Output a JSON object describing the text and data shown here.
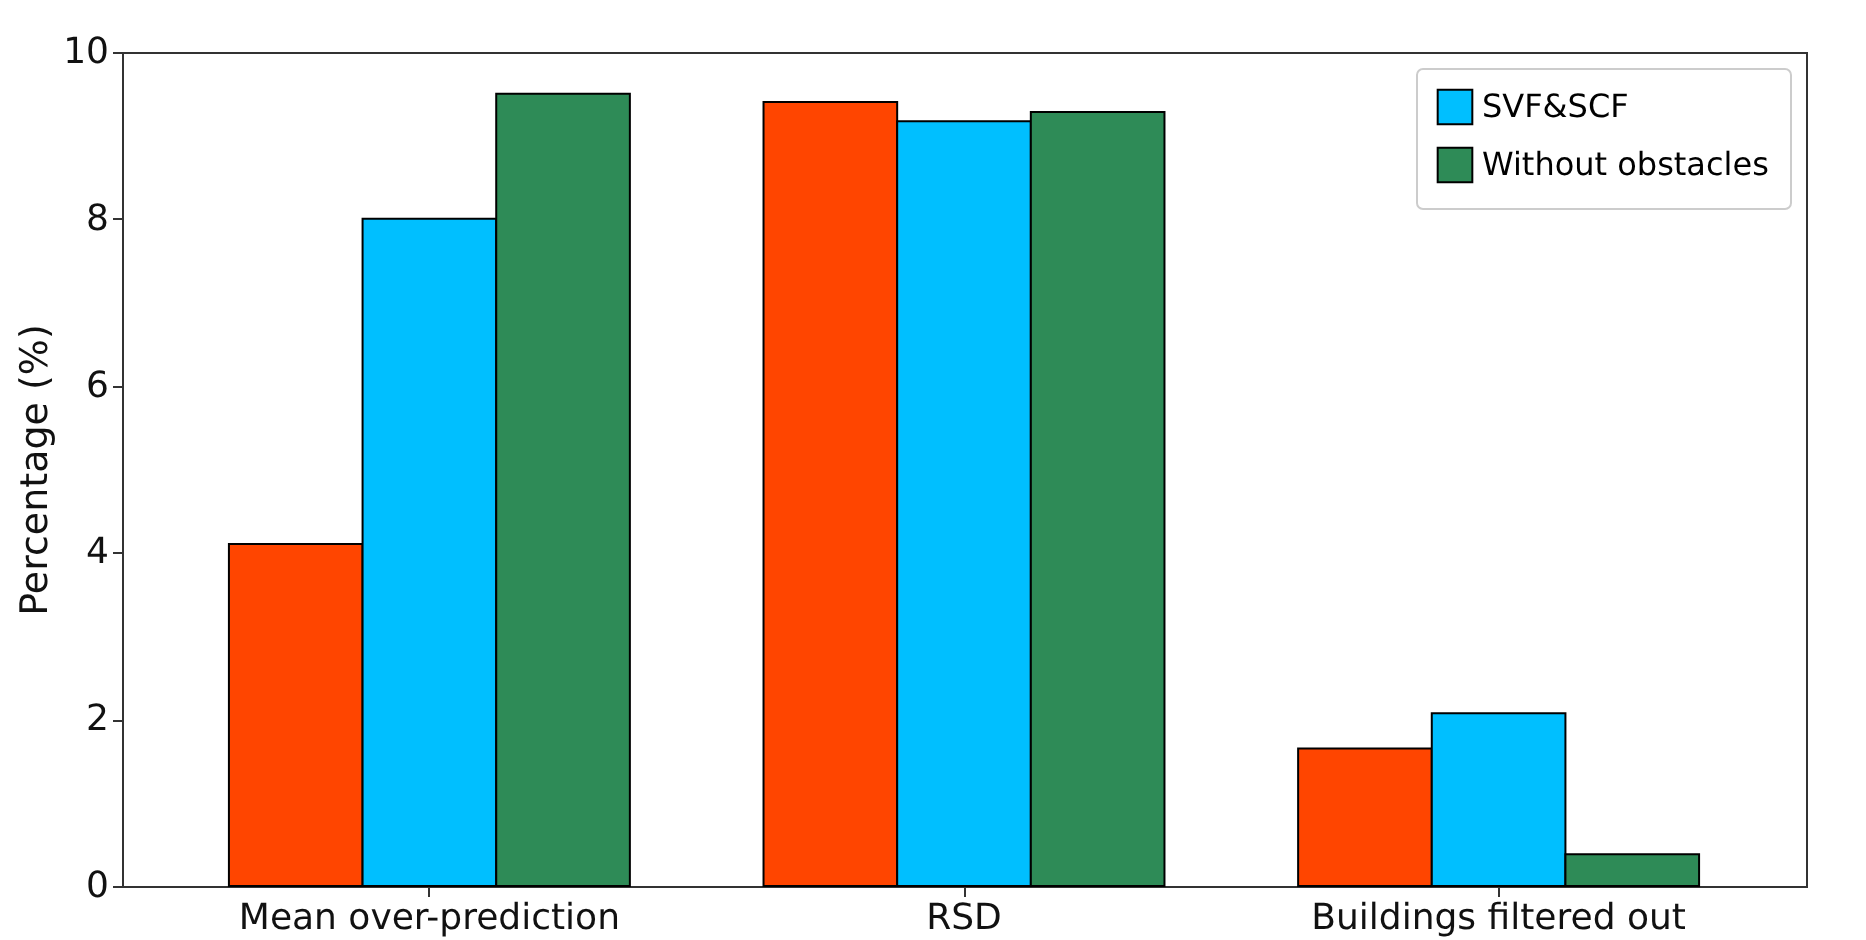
{
  "chart_data": {
    "type": "bar",
    "ylabel": "Percentage (%)",
    "categories": [
      "Mean over-prediction",
      "RSD",
      "Buildings filtered out"
    ],
    "series": [
      {
        "color": "#ff4500",
        "values": [
          4.1,
          9.4,
          1.65
        ]
      },
      {
        "name": "SVF&SCF",
        "color": "#00bfff",
        "values": [
          8.0,
          9.17,
          2.07
        ]
      },
      {
        "name": "Without obstacles",
        "color": "#2e8b57",
        "values": [
          9.5,
          9.28,
          0.38
        ]
      }
    ],
    "ylim": [
      0,
      10
    ],
    "yticks": [
      0,
      2,
      4,
      6,
      8,
      10
    ],
    "grid": false,
    "legend": "top right"
  }
}
